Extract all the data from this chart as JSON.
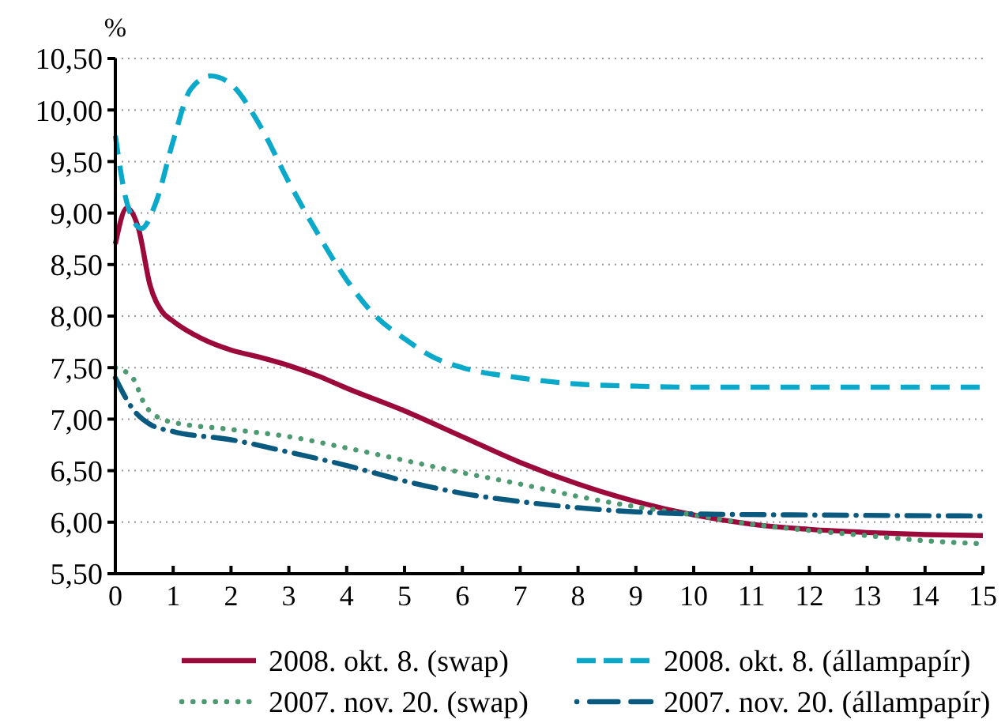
{
  "chart_data": {
    "type": "line",
    "ylabel": "%",
    "xlim": [
      0,
      15
    ],
    "xticks": [
      0,
      1,
      2,
      3,
      4,
      5,
      6,
      7,
      8,
      9,
      10,
      11,
      12,
      13,
      14,
      15
    ],
    "ylim": [
      5.5,
      10.5
    ],
    "yticks": [
      {
        "value": 5.5,
        "label": "5,50"
      },
      {
        "value": 6,
        "label": "6,00"
      },
      {
        "value": 6.5,
        "label": "6,50"
      },
      {
        "value": 7,
        "label": "7,00"
      },
      {
        "value": 7.5,
        "label": "7,50"
      },
      {
        "value": 8,
        "label": "8,00"
      },
      {
        "value": 8.5,
        "label": "8,50"
      },
      {
        "value": 9,
        "label": "9,00"
      },
      {
        "value": 9.5,
        "label": "9,50"
      },
      {
        "value": 10,
        "label": "10,00"
      },
      {
        "value": 10.5,
        "label": "10,50"
      }
    ],
    "grid": "y",
    "legend": "bottom",
    "series": [
      {
        "name": "2008. okt. 8. (swap)",
        "color": "#9b0a3a",
        "line_style": "solid",
        "x": [
          0,
          0.2,
          0.4,
          0.6,
          0.8,
          1,
          1.5,
          2,
          2.5,
          3,
          3.5,
          4,
          5,
          6,
          7,
          8,
          9,
          10,
          11,
          12,
          13,
          14,
          15
        ],
        "values": [
          8.7,
          9.05,
          8.85,
          8.3,
          8.05,
          7.95,
          7.78,
          7.67,
          7.6,
          7.52,
          7.42,
          7.3,
          7.08,
          6.83,
          6.58,
          6.37,
          6.2,
          6.07,
          5.98,
          5.93,
          5.9,
          5.88,
          5.87
        ]
      },
      {
        "name": "2008. okt. 8. (állampapír)",
        "color": "#0aa9c9",
        "line_style": "dashed",
        "x": [
          0,
          0.2,
          0.45,
          0.7,
          1,
          1.3,
          1.65,
          2,
          2.5,
          3,
          3.5,
          4,
          4.5,
          5,
          5.5,
          6,
          7,
          8,
          9,
          10,
          12,
          15
        ],
        "values": [
          9.75,
          9.1,
          8.85,
          9.1,
          9.7,
          10.2,
          10.33,
          10.25,
          9.85,
          9.3,
          8.8,
          8.35,
          8,
          7.78,
          7.6,
          7.5,
          7.4,
          7.34,
          7.32,
          7.31,
          7.31,
          7.31
        ]
      },
      {
        "name": "2007. nov. 20. (swap)",
        "color": "#4d9a72",
        "line_style": "dotted",
        "x": [
          0,
          0.3,
          0.5,
          0.8,
          1,
          2,
          3,
          4,
          5,
          6,
          7,
          8,
          9,
          10,
          11,
          12,
          13,
          14,
          15
        ],
        "values": [
          7.5,
          7.4,
          7.15,
          7,
          6.97,
          6.9,
          6.83,
          6.72,
          6.6,
          6.48,
          6.37,
          6.25,
          6.15,
          6.07,
          5.98,
          5.92,
          5.87,
          5.82,
          5.79
        ]
      },
      {
        "name": "2007. nov. 20. (állampapír)",
        "color": "#0a5a80",
        "line_style": "dashdot",
        "x": [
          0,
          0.3,
          0.6,
          1,
          2,
          3,
          4,
          5,
          6,
          7,
          8,
          9,
          10,
          12,
          15
        ],
        "values": [
          7.4,
          7.1,
          6.95,
          6.88,
          6.8,
          6.68,
          6.55,
          6.4,
          6.28,
          6.2,
          6.14,
          6.1,
          6.08,
          6.07,
          6.06
        ]
      }
    ]
  }
}
